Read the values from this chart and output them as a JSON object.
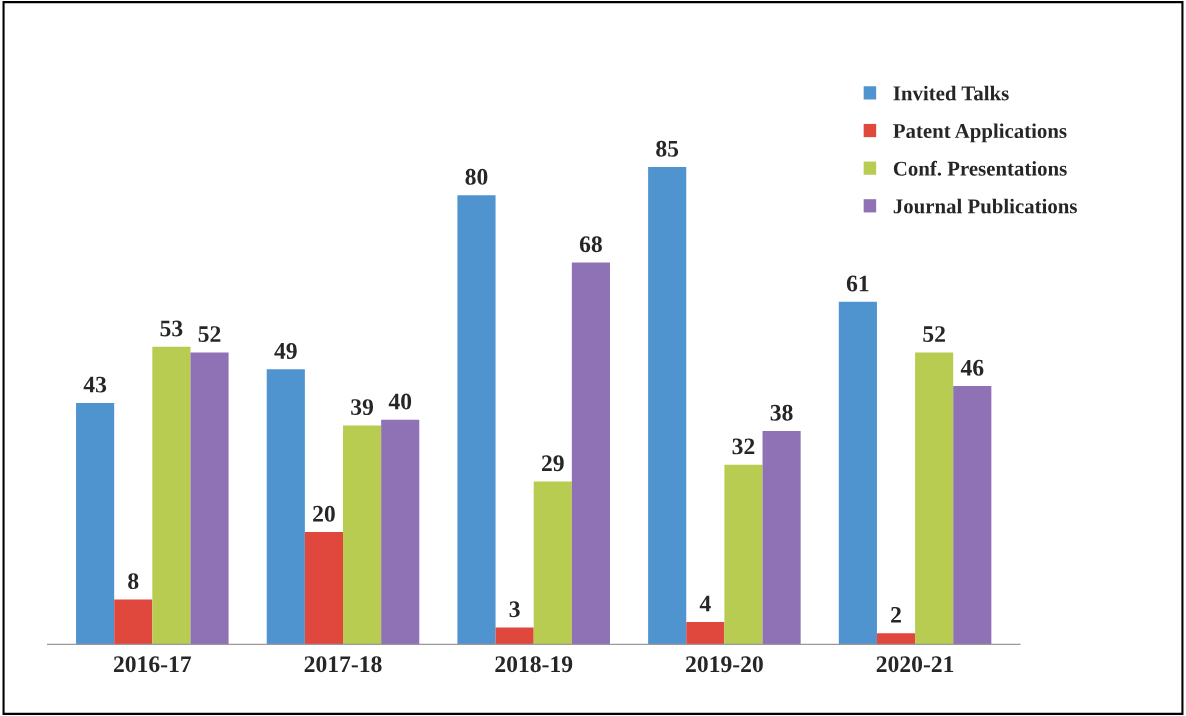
{
  "chart_data": {
    "type": "bar",
    "categories": [
      "2016-17",
      "2017-18",
      "2018-19",
      "2019-20",
      "2020-21"
    ],
    "series": [
      {
        "name": "Invited Talks",
        "color": "#4f93cf",
        "values": [
          43,
          49,
          80,
          85,
          61
        ]
      },
      {
        "name": "Patent Applications",
        "color": "#e0483e",
        "values": [
          8,
          20,
          3,
          4,
          2
        ]
      },
      {
        "name": "Conf. Presentations",
        "color": "#b8cc52",
        "values": [
          53,
          39,
          29,
          32,
          52
        ]
      },
      {
        "name": "Journal Publications",
        "color": "#8f72b5",
        "values": [
          52,
          40,
          68,
          38,
          46
        ]
      }
    ],
    "data_labels": true,
    "legend": "top right",
    "grid": false
  }
}
